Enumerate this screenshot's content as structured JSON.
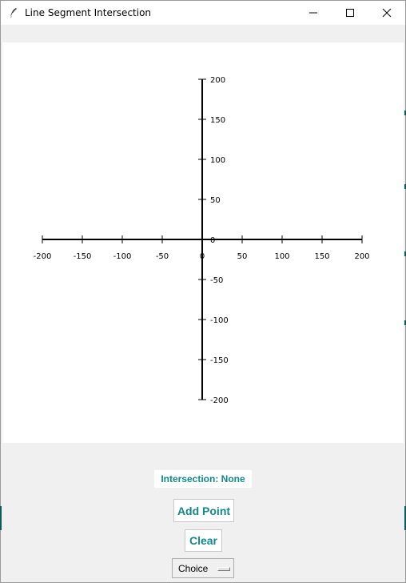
{
  "window": {
    "title": "Line Segment Intersection",
    "icon": "feather-icon",
    "controls": [
      "minimize-icon",
      "maximize-icon",
      "close-icon"
    ]
  },
  "canvas": {
    "x_axis": {
      "min": -200,
      "max": 200,
      "step": 50
    },
    "y_axis": {
      "min": -200,
      "max": 200,
      "step": 50
    },
    "x_tick_labels": [
      "-200",
      "-150",
      "-100",
      "-50",
      "0",
      "50",
      "100",
      "150",
      "200"
    ],
    "y_tick_labels": [
      "200",
      "150",
      "100",
      "50",
      "0",
      "-50",
      "-100",
      "-150",
      "-200"
    ]
  },
  "status": {
    "intersection_text": "Intersection: None"
  },
  "controls": {
    "add_point_label": "Add Point",
    "clear_label": "Clear",
    "choice_label": "Choice"
  },
  "colors": {
    "accent": "#12888a",
    "canvas_bg": "#ffffff",
    "window_bg": "#f0f0f0"
  }
}
